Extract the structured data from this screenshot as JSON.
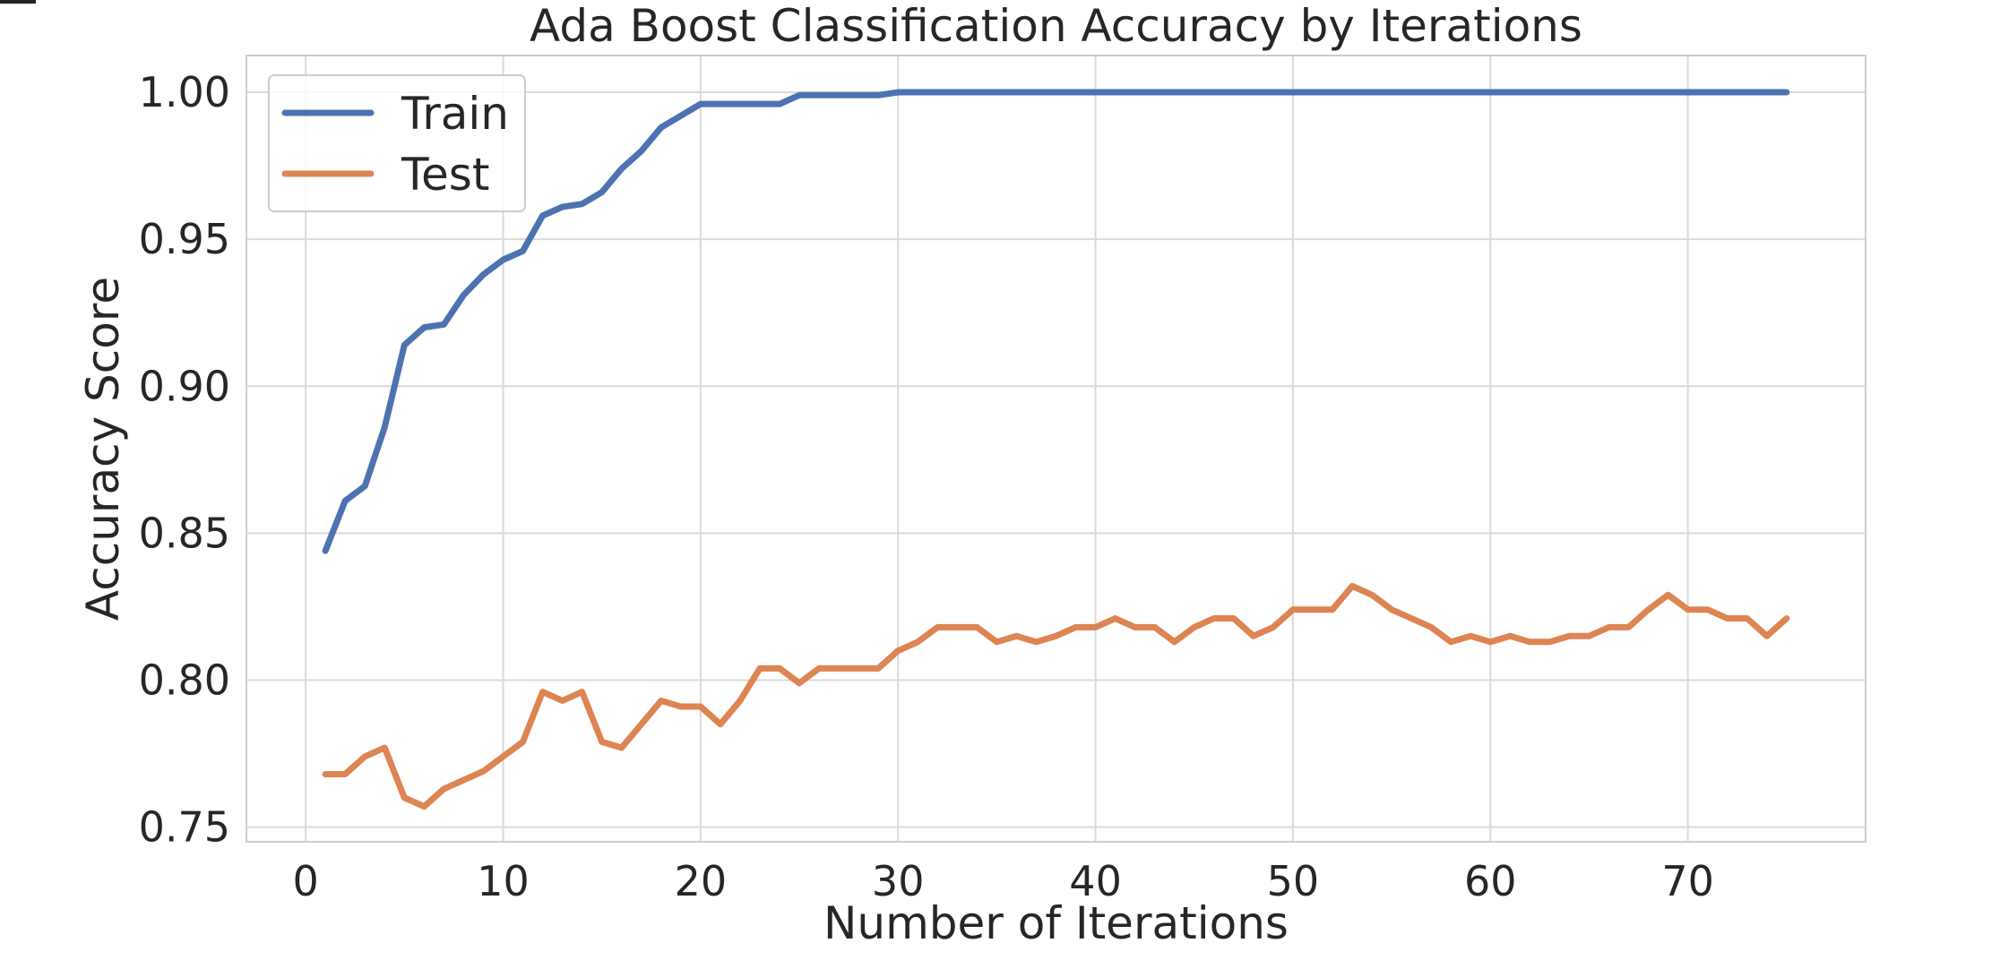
{
  "chart_data": {
    "type": "line",
    "title": "Ada Boost Classification Accuracy by Iterations",
    "xlabel": "Number of Iterations",
    "ylabel": "Accuracy Score",
    "xlim": [
      -3,
      79
    ],
    "ylim": [
      0.745,
      1.0125
    ],
    "xticks": [
      0,
      10,
      20,
      30,
      40,
      50,
      60,
      70
    ],
    "xtick_labels": [
      "0",
      "10",
      "20",
      "30",
      "40",
      "50",
      "60",
      "70"
    ],
    "yticks": [
      0.75,
      0.8,
      0.85,
      0.9,
      0.95,
      1.0
    ],
    "ytick_labels": [
      "0.75",
      "0.80",
      "0.85",
      "0.90",
      "0.95",
      "1.00"
    ],
    "grid": true,
    "legend_position": "top-left",
    "x": [
      1,
      2,
      3,
      4,
      5,
      6,
      7,
      8,
      9,
      10,
      11,
      12,
      13,
      14,
      15,
      16,
      17,
      18,
      19,
      20,
      21,
      22,
      23,
      24,
      25,
      26,
      27,
      28,
      29,
      30,
      31,
      32,
      33,
      34,
      35,
      36,
      37,
      38,
      39,
      40,
      41,
      42,
      43,
      44,
      45,
      46,
      47,
      48,
      49,
      50,
      51,
      52,
      53,
      54,
      55,
      56,
      57,
      58,
      59,
      60,
      61,
      62,
      63,
      64,
      65,
      66,
      67,
      68,
      69,
      70,
      71,
      72,
      73,
      74,
      75
    ],
    "series": [
      {
        "name": "Train",
        "color": "#4c72b0",
        "values": [
          0.844,
          0.861,
          0.866,
          0.886,
          0.914,
          0.92,
          0.921,
          0.931,
          0.938,
          0.943,
          0.946,
          0.958,
          0.961,
          0.962,
          0.966,
          0.974,
          0.98,
          0.988,
          0.992,
          0.996,
          0.996,
          0.996,
          0.996,
          0.996,
          0.999,
          0.999,
          0.999,
          0.999,
          0.999,
          1.0,
          1.0,
          1.0,
          1.0,
          1.0,
          1.0,
          1.0,
          1.0,
          1.0,
          1.0,
          1.0,
          1.0,
          1.0,
          1.0,
          1.0,
          1.0,
          1.0,
          1.0,
          1.0,
          1.0,
          1.0,
          1.0,
          1.0,
          1.0,
          1.0,
          1.0,
          1.0,
          1.0,
          1.0,
          1.0,
          1.0,
          1.0,
          1.0,
          1.0,
          1.0,
          1.0,
          1.0,
          1.0,
          1.0,
          1.0,
          1.0,
          1.0,
          1.0,
          1.0,
          1.0,
          1.0
        ]
      },
      {
        "name": "Test",
        "color": "#dd8452",
        "values": [
          0.768,
          0.768,
          0.774,
          0.777,
          0.76,
          0.757,
          0.763,
          0.766,
          0.769,
          0.774,
          0.779,
          0.796,
          0.793,
          0.796,
          0.779,
          0.777,
          0.785,
          0.793,
          0.791,
          0.791,
          0.785,
          0.793,
          0.804,
          0.804,
          0.799,
          0.804,
          0.804,
          0.804,
          0.804,
          0.81,
          0.813,
          0.818,
          0.818,
          0.818,
          0.813,
          0.815,
          0.813,
          0.815,
          0.818,
          0.818,
          0.821,
          0.818,
          0.818,
          0.813,
          0.818,
          0.821,
          0.821,
          0.815,
          0.818,
          0.824,
          0.824,
          0.824,
          0.832,
          0.829,
          0.824,
          0.821,
          0.818,
          0.813,
          0.815,
          0.813,
          0.815,
          0.813,
          0.813,
          0.815,
          0.815,
          0.818,
          0.818,
          0.824,
          0.829,
          0.824,
          0.824,
          0.821,
          0.821,
          0.815,
          0.821
        ]
      }
    ]
  }
}
